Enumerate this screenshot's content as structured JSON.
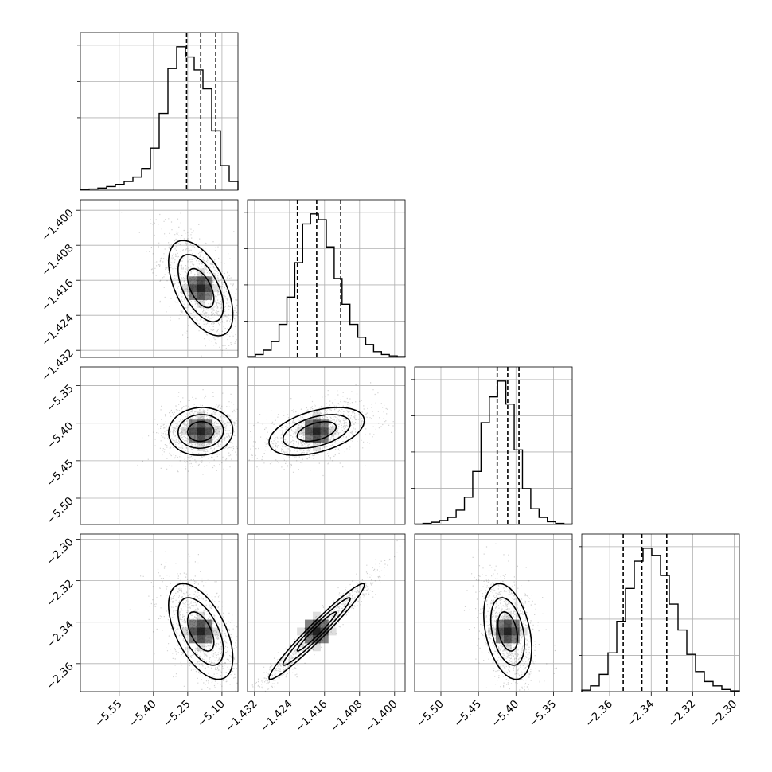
{
  "chart_data": {
    "type": "corner",
    "grid": true,
    "quantile_lines": "dashed",
    "parameters": [
      {
        "range": [
          -5.72,
          -5.03
        ],
        "ticks": [
          -5.55,
          -5.4,
          -5.25,
          -5.1
        ],
        "tick_labels": [
          "−5.55",
          "−5.40",
          "−5.25",
          "−5.10"
        ],
        "quantiles": [
          -5.255,
          -5.193,
          -5.127
        ]
      },
      {
        "range": [
          -1.4336,
          -1.3976
        ],
        "ticks": [
          -1.432,
          -1.424,
          -1.416,
          -1.408,
          -1.4
        ],
        "tick_labels": [
          "−1.432",
          "−1.424",
          "−1.416",
          "−1.408",
          "−1.400"
        ],
        "quantiles": [
          -1.4222,
          -1.4178,
          -1.4123
        ]
      },
      {
        "range": [
          -5.535,
          -5.325
        ],
        "ticks": [
          -5.5,
          -5.45,
          -5.4,
          -5.35
        ],
        "tick_labels": [
          "−5.50",
          "−5.45",
          "−5.40",
          "−5.35"
        ],
        "quantiles": [
          -5.425,
          -5.411,
          -5.396
        ]
      },
      {
        "range": [
          -2.3735,
          -2.2975
        ],
        "ticks": [
          -2.36,
          -2.34,
          -2.32,
          -2.3
        ],
        "tick_labels": [
          "−2.36",
          "−2.34",
          "−2.32",
          "−2.30"
        ],
        "quantiles": [
          -2.3535,
          -2.3445,
          -2.3325
        ]
      }
    ],
    "histograms": [
      [
        0.5,
        0.8,
        1.5,
        2.5,
        4,
        6,
        9,
        15,
        29,
        53,
        84,
        99,
        92,
        83,
        70,
        41,
        17,
        6
      ],
      [
        0.5,
        2,
        5,
        11,
        23,
        42,
        66,
        93,
        100,
        96,
        77,
        55,
        37,
        23,
        14,
        9,
        4,
        2,
        1,
        0.5
      ],
      [
        0.3,
        0.8,
        1.6,
        2.8,
        5,
        10,
        19,
        37,
        71,
        89,
        100,
        84,
        52,
        25,
        11,
        5,
        2,
        0.8,
        0.3
      ],
      [
        1,
        4,
        12,
        27,
        49,
        72,
        91,
        100,
        95,
        81,
        61,
        43,
        26,
        14,
        7,
        4,
        1.5,
        0.5
      ]
    ]
  }
}
